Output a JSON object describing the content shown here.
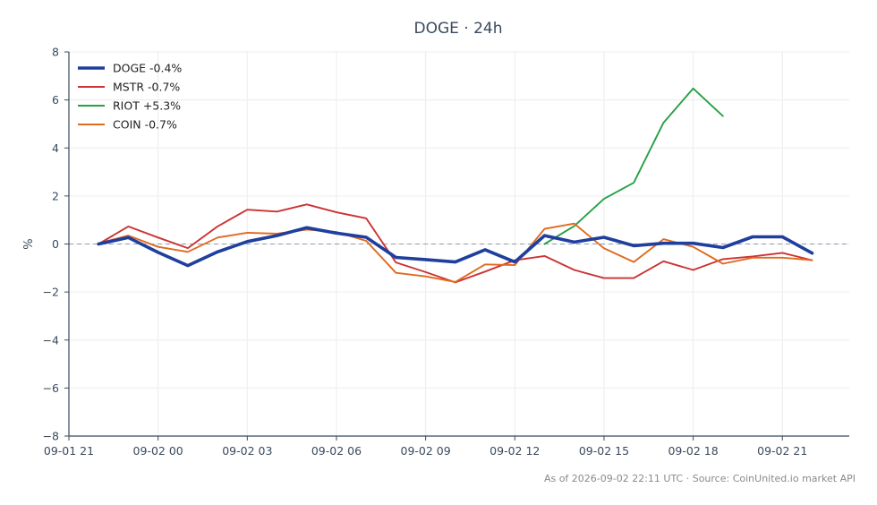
{
  "chart_data": {
    "type": "line",
    "title": "DOGE · 24h",
    "ylabel": "%",
    "xlabel": "",
    "ylim": [
      -8,
      8
    ],
    "yticks": [
      8,
      6,
      4,
      2,
      0,
      -2,
      -4,
      -6,
      -8
    ],
    "ytick_labels": [
      "8",
      "6",
      "4",
      "2",
      "0",
      "−2",
      "−4",
      "−6",
      "−8"
    ],
    "xlim": [
      "2026-09-01 21:00",
      "2026-09-02 23:15"
    ],
    "xticks": [
      {
        "value": "2026-09-01 21:00",
        "label": "09-01 21"
      },
      {
        "value": "2026-09-02 00:00",
        "label": "09-02 00"
      },
      {
        "value": "2026-09-02 03:00",
        "label": "09-02 03"
      },
      {
        "value": "2026-09-02 06:00",
        "label": "09-02 06"
      },
      {
        "value": "2026-09-02 09:00",
        "label": "09-02 09"
      },
      {
        "value": "2026-09-02 12:00",
        "label": "09-02 12"
      },
      {
        "value": "2026-09-02 15:00",
        "label": "09-02 15"
      },
      {
        "value": "2026-09-02 18:00",
        "label": "09-02 18"
      },
      {
        "value": "2026-09-02 21:00",
        "label": "09-02 21"
      }
    ],
    "grid": true,
    "zero_line": "dashed",
    "legend_position": "top-left",
    "series": [
      {
        "name": "DOGE -0.4%",
        "color": "#1f3f9e",
        "emphasis": true,
        "points": [
          [
            "2026-09-01 22:00",
            0.0
          ],
          [
            "2026-09-01 23:00",
            0.27
          ],
          [
            "2026-09-02 00:00",
            -0.35
          ],
          [
            "2026-09-02 01:00",
            -0.9
          ],
          [
            "2026-09-02 02:00",
            -0.33
          ],
          [
            "2026-09-02 03:00",
            0.1
          ],
          [
            "2026-09-02 04:00",
            0.35
          ],
          [
            "2026-09-02 05:00",
            0.68
          ],
          [
            "2026-09-02 06:00",
            0.45
          ],
          [
            "2026-09-02 07:00",
            0.28
          ],
          [
            "2026-09-02 08:00",
            -0.56
          ],
          [
            "2026-09-02 09:00",
            -0.65
          ],
          [
            "2026-09-02 10:00",
            -0.75
          ],
          [
            "2026-09-02 11:00",
            -0.24
          ],
          [
            "2026-09-02 12:00",
            -0.75
          ],
          [
            "2026-09-02 13:00",
            0.35
          ],
          [
            "2026-09-02 14:00",
            0.08
          ],
          [
            "2026-09-02 15:00",
            0.28
          ],
          [
            "2026-09-02 16:00",
            -0.07
          ],
          [
            "2026-09-02 17:00",
            0.03
          ],
          [
            "2026-09-02 18:00",
            0.03
          ],
          [
            "2026-09-02 19:00",
            -0.15
          ],
          [
            "2026-09-02 20:00",
            0.3
          ],
          [
            "2026-09-02 21:00",
            0.3
          ],
          [
            "2026-09-02 22:00",
            -0.38
          ]
        ]
      },
      {
        "name": "MSTR -0.7%",
        "color": "#cc3333",
        "emphasis": false,
        "points": [
          [
            "2026-09-01 22:00",
            0.0
          ],
          [
            "2026-09-01 23:00",
            0.73
          ],
          [
            "2026-09-02 00:00",
            0.27
          ],
          [
            "2026-09-02 01:00",
            -0.17
          ],
          [
            "2026-09-02 02:00",
            0.73
          ],
          [
            "2026-09-02 03:00",
            1.43
          ],
          [
            "2026-09-02 04:00",
            1.35
          ],
          [
            "2026-09-02 05:00",
            1.65
          ],
          [
            "2026-09-02 06:00",
            1.32
          ],
          [
            "2026-09-02 07:00",
            1.07
          ],
          [
            "2026-09-02 08:00",
            -0.77
          ],
          [
            "2026-09-02 09:00",
            -1.17
          ],
          [
            "2026-09-02 10:00",
            -1.6
          ],
          [
            "2026-09-02 11:00",
            -1.15
          ],
          [
            "2026-09-02 12:00",
            -0.68
          ],
          [
            "2026-09-02 13:00",
            -0.5
          ],
          [
            "2026-09-02 14:00",
            -1.08
          ],
          [
            "2026-09-02 15:00",
            -1.42
          ],
          [
            "2026-09-02 16:00",
            -1.42
          ],
          [
            "2026-09-02 17:00",
            -0.72
          ],
          [
            "2026-09-02 18:00",
            -1.08
          ],
          [
            "2026-09-02 19:00",
            -0.63
          ],
          [
            "2026-09-02 20:00",
            -0.52
          ],
          [
            "2026-09-02 21:00",
            -0.37
          ],
          [
            "2026-09-02 22:00",
            -0.68
          ]
        ]
      },
      {
        "name": "RIOT +5.3%",
        "color": "#27a045",
        "emphasis": false,
        "points": [
          [
            "2026-09-02 13:00",
            0.0
          ],
          [
            "2026-09-02 14:00",
            0.75
          ],
          [
            "2026-09-02 15:00",
            1.88
          ],
          [
            "2026-09-02 16:00",
            2.55
          ],
          [
            "2026-09-02 17:00",
            5.05
          ],
          [
            "2026-09-02 18:00",
            6.48
          ],
          [
            "2026-09-02 19:00",
            5.33
          ]
        ]
      },
      {
        "name": "COIN -0.7%",
        "color": "#e06a1e",
        "emphasis": false,
        "points": [
          [
            "2026-09-01 22:00",
            0.03
          ],
          [
            "2026-09-01 23:00",
            0.35
          ],
          [
            "2026-09-02 00:00",
            -0.12
          ],
          [
            "2026-09-02 01:00",
            -0.33
          ],
          [
            "2026-09-02 02:00",
            0.27
          ],
          [
            "2026-09-02 03:00",
            0.47
          ],
          [
            "2026-09-02 04:00",
            0.43
          ],
          [
            "2026-09-02 05:00",
            0.6
          ],
          [
            "2026-09-02 06:00",
            0.5
          ],
          [
            "2026-09-02 07:00",
            0.13
          ],
          [
            "2026-09-02 08:00",
            -1.2
          ],
          [
            "2026-09-02 09:00",
            -1.35
          ],
          [
            "2026-09-02 10:00",
            -1.58
          ],
          [
            "2026-09-02 11:00",
            -0.85
          ],
          [
            "2026-09-02 12:00",
            -0.88
          ],
          [
            "2026-09-02 13:00",
            0.63
          ],
          [
            "2026-09-02 14:00",
            0.85
          ],
          [
            "2026-09-02 15:00",
            -0.18
          ],
          [
            "2026-09-02 16:00",
            -0.75
          ],
          [
            "2026-09-02 17:00",
            0.2
          ],
          [
            "2026-09-02 18:00",
            -0.12
          ],
          [
            "2026-09-02 19:00",
            -0.82
          ],
          [
            "2026-09-02 20:00",
            -0.57
          ],
          [
            "2026-09-02 21:00",
            -0.57
          ],
          [
            "2026-09-02 22:00",
            -0.67
          ]
        ]
      }
    ]
  },
  "footer": {
    "text": "As of 2026-09-02 22:11 UTC · Source: CoinUnited.io market API"
  }
}
